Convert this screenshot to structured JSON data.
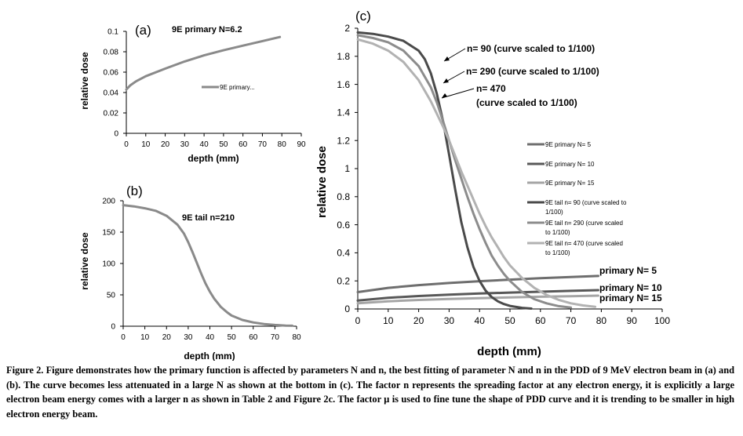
{
  "figure": {
    "panel_a_label": "(a)",
    "panel_b_label": "(b)",
    "panel_c_label": "(c)",
    "caption": "Figure 2. Figure demonstrates how the primary function is affected by parameters N and n, the best fitting of parameter N and n in the PDD of 9 MeV electron beam in (a) and (b). The curve becomes less attenuated in a large N as shown at the bottom in (c). The factor n represents the spreading factor at any electron energy, it is explicitly a large electron beam energy comes with a larger n as shown in Table 2 and Figure 2c. The factor μ is used to fine tune the shape of PDD curve and it is trending to be smaller in high electron energy beam."
  },
  "chart_data": [
    {
      "id": "a",
      "type": "line",
      "title": "9E primary N=6.2",
      "xlabel": "depth (mm)",
      "ylabel": "relative dose",
      "xlim": [
        0,
        90
      ],
      "ylim": [
        0,
        0.1
      ],
      "xticks": [
        "0",
        "10",
        "20",
        "30",
        "40",
        "50",
        "60",
        "70",
        "80",
        "90"
      ],
      "yticks": [
        "0",
        "0.02",
        "0.04",
        "0.06",
        "0.08",
        "0.1"
      ],
      "color": "#8a8a8a",
      "legend": [
        "9E primary..."
      ],
      "series": [
        {
          "name": "9E primary...",
          "x": [
            0,
            2,
            5,
            10,
            20,
            30,
            40,
            50,
            60,
            70,
            79
          ],
          "y": [
            0.043,
            0.047,
            0.051,
            0.056,
            0.0635,
            0.0705,
            0.0765,
            0.0815,
            0.086,
            0.0905,
            0.0945
          ]
        }
      ]
    },
    {
      "id": "b",
      "type": "line",
      "title": "9E tail n=210",
      "xlabel": "depth (mm)",
      "ylabel": "relative dose",
      "xlim": [
        0,
        80
      ],
      "ylim": [
        0,
        200
      ],
      "xticks": [
        "0",
        "10",
        "20",
        "30",
        "40",
        "50",
        "60",
        "70",
        "80"
      ],
      "yticks": [
        "0",
        "50",
        "100",
        "150",
        "200"
      ],
      "color": "#8a8a8a",
      "series": [
        {
          "name": "9E tail n=210",
          "x": [
            0,
            5,
            10,
            15,
            20,
            25,
            28,
            30,
            32,
            34,
            36,
            38,
            40,
            42,
            45,
            48,
            50,
            55,
            60,
            65,
            70,
            75,
            78
          ],
          "y": [
            193,
            191,
            188,
            184,
            176,
            162,
            148,
            134,
            118,
            101,
            84,
            68,
            55,
            44,
            31,
            22,
            17,
            10,
            6,
            3.5,
            2,
            1,
            0.7
          ]
        }
      ]
    },
    {
      "id": "c",
      "type": "line",
      "xlabel": "depth (mm)",
      "ylabel": "relative dose",
      "xlim": [
        0,
        100
      ],
      "ylim": [
        0,
        2
      ],
      "xticks": [
        "0",
        "10",
        "20",
        "30",
        "40",
        "50",
        "60",
        "70",
        "80",
        "90",
        "100"
      ],
      "yticks": [
        "0",
        "0.2",
        "0.4",
        "0.6",
        "0.8",
        "1",
        "1.2",
        "1.4",
        "1.6",
        "1.8",
        "2"
      ],
      "legend": [
        "9E primary N= 5",
        "9E primary N= 10",
        "9E primary N= 15",
        "9E tail n= 90 (curve scaled to 1/100)",
        "9E tail n= 290  (curve scaled to 1/100)",
        "9E tail n= 470  (curve scaled to 1/100)"
      ],
      "annotations": [
        "n= 90 (curve scaled to 1/100)",
        "n= 290 (curve scaled to 1/100)",
        "n= 470",
        "(curve scaled to 1/100)",
        "primary N= 5",
        "primary N= 10",
        "primary N= 15"
      ],
      "series": [
        {
          "name": "9E primary N= 5",
          "color": "#6e6e6e",
          "x": [
            0,
            10,
            20,
            30,
            40,
            50,
            60,
            70,
            79
          ],
          "y": [
            0.12,
            0.15,
            0.17,
            0.185,
            0.198,
            0.209,
            0.219,
            0.228,
            0.235
          ]
        },
        {
          "name": "9E primary N= 10",
          "color": "#585858",
          "x": [
            0,
            10,
            20,
            30,
            40,
            50,
            60,
            70,
            79
          ],
          "y": [
            0.06,
            0.08,
            0.092,
            0.102,
            0.11,
            0.117,
            0.123,
            0.129,
            0.134
          ]
        },
        {
          "name": "9E primary N= 15",
          "color": "#a5a5a5",
          "x": [
            0,
            10,
            20,
            30,
            40,
            50,
            60,
            70,
            79
          ],
          "y": [
            0.04,
            0.055,
            0.064,
            0.071,
            0.077,
            0.082,
            0.087,
            0.091,
            0.095
          ]
        },
        {
          "name": "9E tail n= 90 (curve scaled to 1/100)",
          "color": "#4a4a4a",
          "x": [
            0,
            5,
            10,
            15,
            20,
            22,
            24,
            26,
            28,
            30,
            32,
            34,
            36,
            38,
            40,
            42,
            44,
            46,
            48,
            50,
            54,
            57
          ],
          "y": [
            1.97,
            1.96,
            1.94,
            1.91,
            1.84,
            1.78,
            1.68,
            1.53,
            1.34,
            1.1,
            0.85,
            0.62,
            0.44,
            0.3,
            0.2,
            0.13,
            0.085,
            0.055,
            0.035,
            0.022,
            0.008,
            0.003
          ]
        },
        {
          "name": "9E tail n= 290  (curve scaled to 1/100)",
          "color": "#8c8c8c",
          "x": [
            0,
            5,
            10,
            15,
            20,
            24,
            26,
            28,
            30,
            32,
            34,
            36,
            38,
            40,
            42,
            44,
            46,
            48,
            50,
            54,
            58,
            62,
            66,
            70
          ],
          "y": [
            1.95,
            1.93,
            1.9,
            1.84,
            1.73,
            1.58,
            1.47,
            1.34,
            1.2,
            1.06,
            0.93,
            0.8,
            0.68,
            0.57,
            0.47,
            0.38,
            0.31,
            0.25,
            0.2,
            0.12,
            0.07,
            0.04,
            0.02,
            0.01
          ]
        },
        {
          "name": "9E tail n= 470  (curve scaled to 1/100)",
          "color": "#b2b2b2",
          "x": [
            0,
            5,
            10,
            15,
            20,
            24,
            28,
            30,
            32,
            34,
            36,
            38,
            40,
            42,
            44,
            46,
            48,
            50,
            54,
            58,
            62,
            66,
            70,
            74,
            78
          ],
          "y": [
            1.92,
            1.89,
            1.84,
            1.76,
            1.63,
            1.48,
            1.3,
            1.2,
            1.09,
            0.98,
            0.88,
            0.78,
            0.68,
            0.59,
            0.51,
            0.44,
            0.37,
            0.31,
            0.22,
            0.15,
            0.1,
            0.065,
            0.04,
            0.025,
            0.015
          ]
        }
      ]
    }
  ]
}
